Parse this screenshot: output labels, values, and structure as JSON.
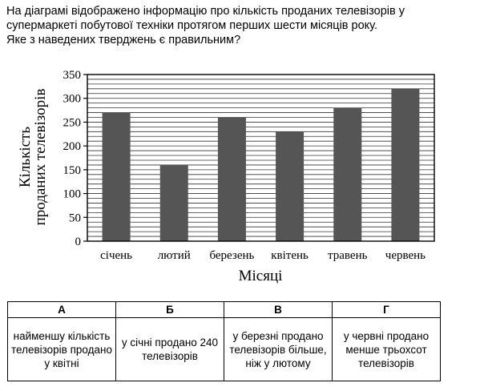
{
  "question": {
    "lines": [
      "На діаграмі відображено інформацію про кількість проданих телевізорів у",
      "супермаркеті побутової техніки протягом перших шести місяців року.",
      "Яке з наведених тверджень є правильним?"
    ]
  },
  "chart_data": {
    "type": "bar",
    "categories": [
      "січень",
      "лютий",
      "березень",
      "квітень",
      "травень",
      "червень"
    ],
    "values": [
      270,
      160,
      260,
      230,
      280,
      320
    ],
    "xlabel": "Місяці",
    "ylabel_lines": [
      "Кількість",
      "проданих телевізорів"
    ],
    "ylim": [
      0,
      350
    ],
    "yticks": [
      0,
      50,
      100,
      150,
      200,
      250,
      300,
      350
    ],
    "minor_grid_step": 10,
    "grid": true,
    "bar_color": "#555555"
  },
  "options": {
    "headers": [
      "А",
      "Б",
      "В",
      "Г"
    ],
    "cells": [
      "найменшу кількість телевізорів продано у квітні",
      "у січні продано 240 телевізорів",
      "у березні продано телевізорів більше, ніж у лютому",
      "у червні продано менше трьохсот телевізорів"
    ]
  }
}
